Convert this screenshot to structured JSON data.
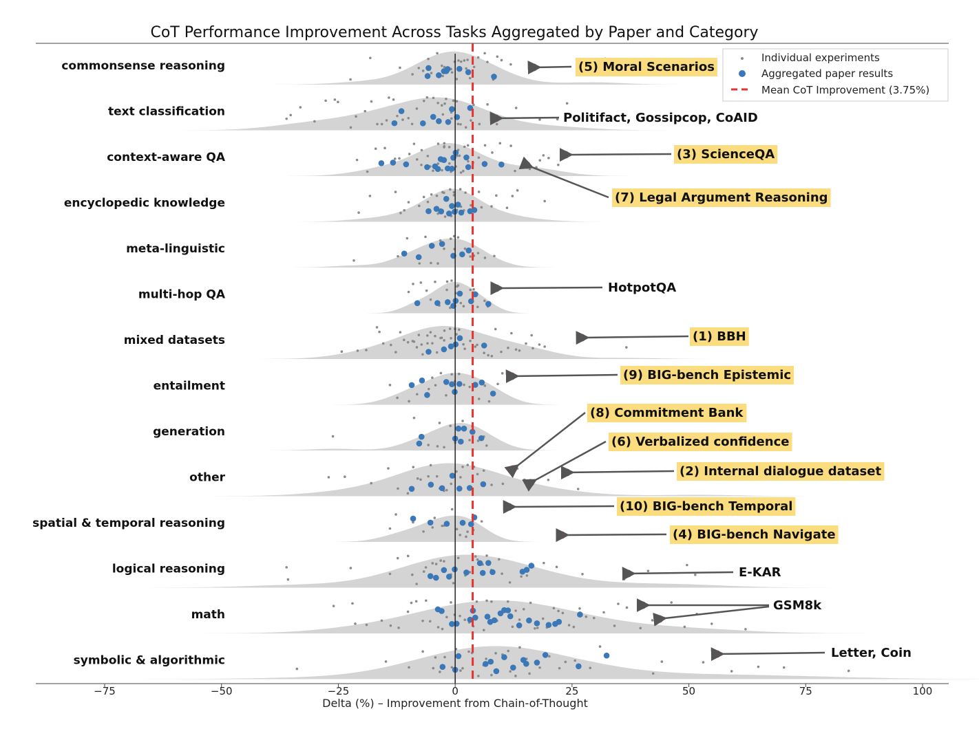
{
  "chart_data": {
    "type": "scatter",
    "subtype": "ridgeline-strip",
    "title": "CoT Performance Improvement Across Tasks Aggregated by Paper and Category",
    "xlabel": "Delta (%) – Improvement from Chain-of-Thought",
    "ylabel": "",
    "xlim": [
      -75,
      100
    ],
    "xticks": [
      -75,
      -50,
      -25,
      0,
      25,
      50,
      75,
      100
    ],
    "xtick_labels": [
      "−75",
      "−50",
      "−25",
      "0",
      "25",
      "50",
      "75",
      "100"
    ],
    "grid": false,
    "legend_position": "top-right",
    "legend": {
      "individual": "Individual experiments",
      "aggregated": "Aggregated paper results",
      "mean": "Mean CoT Improvement (3.75%)"
    },
    "mean_improvement": 3.75,
    "colors": {
      "individual": "#8a8a8a",
      "aggregated": "#3a78b8",
      "mean_line": "#e8322e",
      "density": "#d4d4d4",
      "highlight_ring": "#e8322e",
      "label_box": "#fbdc7f"
    },
    "categories": [
      {
        "name": "commonsense reasoning",
        "aggregated": [
          -5.9,
          -5.7,
          -3.5,
          -2.4,
          -1.9,
          -1.6,
          0.9,
          2.8,
          8.3
        ],
        "individual": [
          -22,
          -18,
          -12,
          -9,
          -8,
          -7,
          -6,
          -5,
          -4,
          -3,
          -3,
          -2,
          -1,
          -1,
          0,
          0,
          1,
          1,
          2,
          2,
          3,
          3,
          4,
          5,
          6,
          7,
          8,
          9,
          10,
          12,
          27,
          32
        ],
        "highlights": [
          {
            "x": 16.8,
            "label": "(5) Moral Scenarios",
            "boxed": true
          }
        ]
      },
      {
        "name": "text classification",
        "aggregated": [
          -11.5,
          -13,
          -6.9,
          -4.7,
          -3.5,
          -1.5,
          -0.7,
          0.4,
          3.2
        ],
        "individual": [
          -36,
          -35,
          -33,
          -30,
          -28,
          -26,
          -25,
          -22,
          -21,
          -19,
          -18,
          -17,
          -16,
          -15,
          -14,
          -13,
          -12,
          -11,
          -10,
          -9,
          -8,
          -7,
          -6,
          -5,
          -5,
          -4,
          -3,
          -3,
          -2,
          -2,
          -1,
          -1,
          0,
          0,
          1,
          1,
          2,
          3,
          4,
          5,
          7,
          9,
          13,
          18,
          22,
          24
        ],
        "highlights": [
          {
            "x": 8.7,
            "label": "Politifact, Gossipcop, CoAID",
            "boxed": false
          }
        ]
      },
      {
        "name": "context-aware QA",
        "aggregated": [
          -15.8,
          -13.3,
          -10.5,
          -6,
          -4.3,
          -3.7,
          -3.1,
          -2.4,
          -1.6,
          -0.7,
          -0.4,
          0.1,
          2.4,
          2.8,
          6.3,
          9.9
        ],
        "individual": [
          -21,
          -19,
          -17,
          -15,
          -13,
          -12,
          -10,
          -9,
          -8,
          -7,
          -7,
          -6,
          -5,
          -5,
          -4,
          -4,
          -3,
          -3,
          -2,
          -2,
          -2,
          -1,
          -1,
          -1,
          0,
          0,
          0,
          1,
          1,
          1,
          2,
          2,
          3,
          3,
          4,
          5,
          6,
          8,
          10,
          12,
          13,
          15,
          16,
          17,
          18,
          19,
          20,
          22
        ],
        "highlights": [
          {
            "x": 23.6,
            "label": "(3) ScienceQA",
            "boxed": true
          },
          {
            "x": 15.3,
            "label": "(7) Legal Argument Reasoning",
            "boxed": true
          }
        ]
      },
      {
        "name": "encyclopedic knowledge",
        "aggregated": [
          -5.7,
          -4,
          -3,
          -1.9,
          -1.3,
          -0.7,
          -0.1,
          0.6,
          1.3,
          3.2,
          4.1
        ],
        "individual": [
          -21,
          -18,
          -13,
          -12,
          -11,
          -10,
          -8,
          -7,
          -6,
          -5,
          -4,
          -4,
          -3,
          -3,
          -2,
          -2,
          -1,
          -1,
          0,
          0,
          0,
          1,
          1,
          2,
          2,
          3,
          3,
          4,
          5,
          6,
          8,
          9,
          11,
          12,
          13,
          19
        ],
        "highlights": []
      },
      {
        "name": "meta-linguistic",
        "aggregated": [
          -10.9,
          -7.8,
          -5,
          -2.8,
          -0.4,
          1.5,
          2.9
        ],
        "individual": [
          -22,
          -12,
          -10,
          -8,
          -6,
          -5,
          -4,
          -3,
          -2,
          -1,
          0,
          0,
          1,
          2,
          3,
          4,
          5,
          6,
          8
        ],
        "highlights": []
      },
      {
        "name": "multi-hop QA",
        "aggregated": [
          -8.1,
          -3.8,
          -1.6,
          -0.4,
          0.1,
          1,
          3.4,
          4.3,
          7.1
        ],
        "individual": [
          -10,
          -9,
          -7,
          -6,
          -5,
          -4,
          -3,
          -2,
          -2,
          -1,
          -1,
          0,
          0,
          1,
          1,
          2,
          3,
          4,
          5,
          6,
          7
        ],
        "highlights": [
          {
            "x": 8.8,
            "label": "HotpotQA",
            "boxed": false
          }
        ]
      },
      {
        "name": "mixed datasets",
        "aggregated": [
          -5.7,
          -2.4,
          -0.9,
          0.1,
          1,
          6.2
        ],
        "individual": [
          -24,
          -21,
          -19,
          -17,
          -16,
          -15,
          -14,
          -13,
          -12,
          -11,
          -10,
          -9,
          -9,
          -8,
          -8,
          -7,
          -7,
          -6,
          -6,
          -5,
          -5,
          -4,
          -4,
          -3,
          -3,
          -2,
          -2,
          -1,
          -1,
          0,
          0,
          1,
          1,
          2,
          2,
          3,
          4,
          5,
          6,
          7,
          8,
          9,
          10,
          11,
          12,
          13,
          14,
          15,
          16,
          17,
          18,
          19,
          37
        ],
        "highlights": [
          {
            "x": 27.1,
            "label": "(1) BBH",
            "boxed": true
          }
        ]
      },
      {
        "name": "entailment",
        "aggregated": [
          -9.3,
          -7.1,
          -6,
          -1.9,
          -0.7,
          -0.1,
          0.9,
          4.3,
          5.7,
          8.1
        ],
        "individual": [
          -14,
          -12,
          -10,
          -8,
          -6,
          -5,
          -4,
          -3,
          -2,
          -1,
          0,
          0,
          1,
          2,
          3,
          4,
          5,
          6,
          7,
          9,
          10
        ],
        "highlights": [
          {
            "x": 12.1,
            "label": "(9) BIG-bench Epistemic",
            "boxed": true
          }
        ]
      },
      {
        "name": "generation",
        "aggregated": [
          -7.7,
          -7.2,
          0,
          0.7,
          1.2,
          1.9,
          3.7,
          5.6
        ],
        "individual": [
          -26,
          -9,
          -6,
          -4,
          -3,
          -2,
          -1,
          0,
          1,
          2,
          3,
          4,
          5,
          6,
          7
        ],
        "highlights": []
      },
      {
        "name": "other",
        "aggregated": [
          -9.3,
          -5.2,
          -2.8,
          -0.6,
          0.9,
          3.1,
          6
        ],
        "individual": [
          -27,
          -24,
          -18,
          -14,
          -12,
          -10,
          -9,
          -8,
          -7,
          -6,
          -5,
          -4,
          -3,
          -2,
          -2,
          -1,
          0,
          1,
          2,
          3,
          4,
          5,
          6,
          8,
          10,
          13,
          15,
          17,
          20,
          26,
          52
        ],
        "highlights": [
          {
            "x": 12.4,
            "label": "(8) Commitment Bank",
            "boxed": true
          },
          {
            "x": 16.1,
            "label": "(6) Verbalized confidence",
            "boxed": true
          },
          {
            "x": 23.9,
            "label": "(2) Internal dialogue dataset",
            "boxed": true
          }
        ]
      },
      {
        "name": "spatial & temporal reasoning",
        "aggregated": [
          -9,
          -5.3,
          -1.8,
          1.6,
          3.4,
          4.1
        ],
        "individual": [
          -14,
          -13,
          -9,
          -7,
          -5,
          -4,
          -3,
          -2,
          -1,
          0,
          1,
          2,
          3,
          4,
          6
        ],
        "highlights": [
          {
            "x": 11.5,
            "label": "(10) BIG-bench Temporal",
            "boxed": true
          },
          {
            "x": 22.8,
            "label": "(4) BIG-bench Navigate",
            "boxed": true
          }
        ]
      },
      {
        "name": "logical reasoning",
        "aggregated": [
          -5.3,
          -4.1,
          -2.4,
          -1.3,
          -0.1,
          2.4,
          5.3,
          5.9,
          7.1,
          8,
          14.4,
          15.3,
          16.3
        ],
        "individual": [
          -36,
          -36,
          -22,
          -14,
          -12,
          -10,
          -9,
          -8,
          -7,
          -6,
          -5,
          -4,
          -3,
          -2,
          -1,
          0,
          1,
          2,
          3,
          4,
          5,
          6,
          7,
          8,
          9,
          10,
          12,
          14,
          15,
          17,
          19,
          22,
          27,
          36,
          41,
          50,
          51
        ],
        "highlights": [
          {
            "x": 37,
            "label": "E-KAR",
            "boxed": false
          }
        ]
      },
      {
        "name": "math",
        "aggregated": [
          -3.7,
          -2.9,
          -0.7,
          0.3,
          3.2,
          3.8,
          4.3,
          6.9,
          7.5,
          8.4,
          9.7,
          10.5,
          11.3,
          11.8,
          13.7,
          15.8,
          17.5,
          20,
          21.4,
          22.2,
          26.7
        ],
        "individual": [
          -26,
          -22,
          -21,
          -19,
          -16,
          -14,
          -12,
          -10,
          -9,
          -8,
          -7,
          -6,
          -5,
          -4,
          -3,
          -2,
          -1,
          0,
          1,
          2,
          3,
          4,
          5,
          6,
          7,
          8,
          9,
          10,
          11,
          12,
          13,
          14,
          15,
          16,
          17,
          18,
          19,
          20,
          21,
          22,
          23,
          24,
          25,
          27,
          28,
          30,
          32,
          34,
          35,
          37,
          40,
          42,
          46,
          49,
          52,
          55,
          62
        ],
        "highlights": [
          {
            "x": 40.1,
            "label": "GSM8k",
            "boxed": false
          },
          {
            "x": 43.7,
            "label": "GSM8k",
            "boxed": false
          }
        ]
      },
      {
        "name": "symbolic & algorithmic",
        "aggregated": [
          -2.7,
          0,
          0.7,
          6.5,
          7.6,
          8.8,
          10.5,
          12.4,
          14.6,
          15.2,
          17.5,
          19.3,
          26.4,
          32.4
        ],
        "individual": [
          -34,
          -15,
          -10,
          -7,
          -5,
          -4,
          -3,
          -2,
          -1,
          0,
          1,
          2,
          3,
          4,
          5,
          6,
          7,
          8,
          9,
          10,
          11,
          12,
          13,
          14,
          15,
          16,
          18,
          20,
          22,
          24,
          26,
          29,
          31,
          42,
          44,
          53,
          59,
          65,
          70,
          84
        ],
        "highlights": [
          {
            "x": 56,
            "label": "Letter, Coin",
            "boxed": false
          }
        ]
      }
    ]
  }
}
